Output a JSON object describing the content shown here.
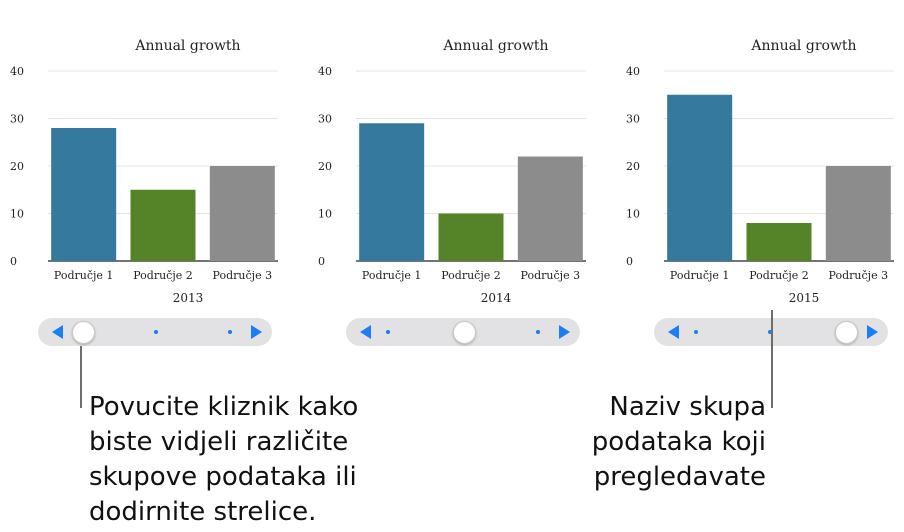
{
  "charts": [
    {
      "title": "Annual growth",
      "set_label": "2013",
      "chart_data": {
        "type": "bar",
        "title": "Annual growth",
        "categories": [
          "Područje 1",
          "Područje 2",
          "Područje 3"
        ],
        "values": [
          28,
          15,
          20
        ],
        "colors": [
          "#36799e",
          "#548427",
          "#8c8c8c"
        ],
        "ylim": [
          0,
          40
        ],
        "yticks": [
          0,
          10,
          20,
          30,
          40
        ],
        "grid": true
      },
      "slider": {
        "position": 0,
        "dots": 3,
        "knob_index": 0
      }
    },
    {
      "title": "Annual growth",
      "set_label": "2014",
      "chart_data": {
        "type": "bar",
        "title": "Annual growth",
        "categories": [
          "Područje 1",
          "Područje 2",
          "Područje 3"
        ],
        "values": [
          29,
          10,
          22
        ],
        "colors": [
          "#36799e",
          "#548427",
          "#8c8c8c"
        ],
        "ylim": [
          0,
          40
        ],
        "yticks": [
          0,
          10,
          20,
          30,
          40
        ],
        "grid": true
      },
      "slider": {
        "position": 1,
        "dots": 3,
        "knob_index": 1
      }
    },
    {
      "title": "Annual growth",
      "set_label": "2015",
      "chart_data": {
        "type": "bar",
        "title": "Annual growth",
        "categories": [
          "Područje 1",
          "Područje 2",
          "Područje 3"
        ],
        "values": [
          35,
          8,
          20
        ],
        "colors": [
          "#36799e",
          "#548427",
          "#8c8c8c"
        ],
        "ylim": [
          0,
          40
        ],
        "yticks": [
          0,
          10,
          20,
          30,
          40
        ],
        "grid": true
      },
      "slider": {
        "position": 2,
        "dots": 3,
        "knob_index": 2
      }
    }
  ],
  "callouts": {
    "slider_hint": [
      "Povucite kliznik kako",
      "biste vidjeli različite",
      "skupove podataka ili",
      "dodirnite strelice."
    ],
    "set_name_hint": [
      "Naziv skupa",
      "podataka koji",
      "pregledavate"
    ]
  },
  "colors": {
    "accent": "#1a7ef5",
    "track": "#e2e2e4",
    "series_1": "#36799e",
    "series_2": "#548427",
    "series_3": "#8c8c8c"
  }
}
